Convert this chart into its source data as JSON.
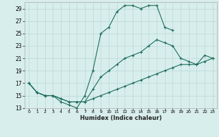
{
  "xlabel": "Humidex (Indice chaleur)",
  "xlim": [
    -0.5,
    23.5
  ],
  "ylim": [
    13,
    30
  ],
  "yticks": [
    13,
    15,
    17,
    19,
    21,
    23,
    25,
    27,
    29
  ],
  "xticks": [
    0,
    1,
    2,
    3,
    4,
    5,
    6,
    7,
    8,
    9,
    10,
    11,
    12,
    13,
    14,
    15,
    16,
    17,
    18,
    19,
    20,
    21,
    22,
    23
  ],
  "bg_color": "#d8eeec",
  "grid_color": "#b8d8d4",
  "line_color": "#1a6b5a",
  "lines": [
    {
      "x": [
        0,
        1,
        2,
        3,
        4,
        5,
        6,
        7,
        8,
        9,
        10,
        11,
        12,
        13,
        14,
        15,
        16,
        17,
        18
      ],
      "y": [
        17,
        15.5,
        15,
        15,
        14,
        13.5,
        13,
        15,
        19,
        25,
        26,
        28.5,
        29.5,
        29.5,
        29,
        29.5,
        29.5,
        26,
        25.5
      ]
    },
    {
      "x": [
        0,
        1,
        2,
        3,
        4,
        5,
        6,
        7,
        8,
        9,
        10,
        11,
        12,
        13,
        14,
        15,
        16,
        17,
        18,
        19,
        20,
        21,
        22,
        23
      ],
      "y": [
        17,
        15.5,
        15,
        15,
        14.5,
        14,
        14,
        14,
        16,
        18,
        19,
        20,
        21,
        21.5,
        22,
        23,
        24,
        23.5,
        23,
        21,
        20.5,
        20,
        21.5,
        21
      ]
    },
    {
      "x": [
        0,
        1,
        2,
        3,
        4,
        5,
        6,
        7,
        8,
        9,
        10,
        11,
        12,
        13,
        14,
        15,
        16,
        17,
        18,
        19,
        20,
        21,
        22,
        23
      ],
      "y": [
        17,
        15.5,
        15,
        15,
        14.5,
        14,
        14,
        14,
        14.5,
        15,
        15.5,
        16,
        16.5,
        17,
        17.5,
        18,
        18.5,
        19,
        19.5,
        20,
        20,
        20,
        20.5,
        21
      ]
    }
  ]
}
